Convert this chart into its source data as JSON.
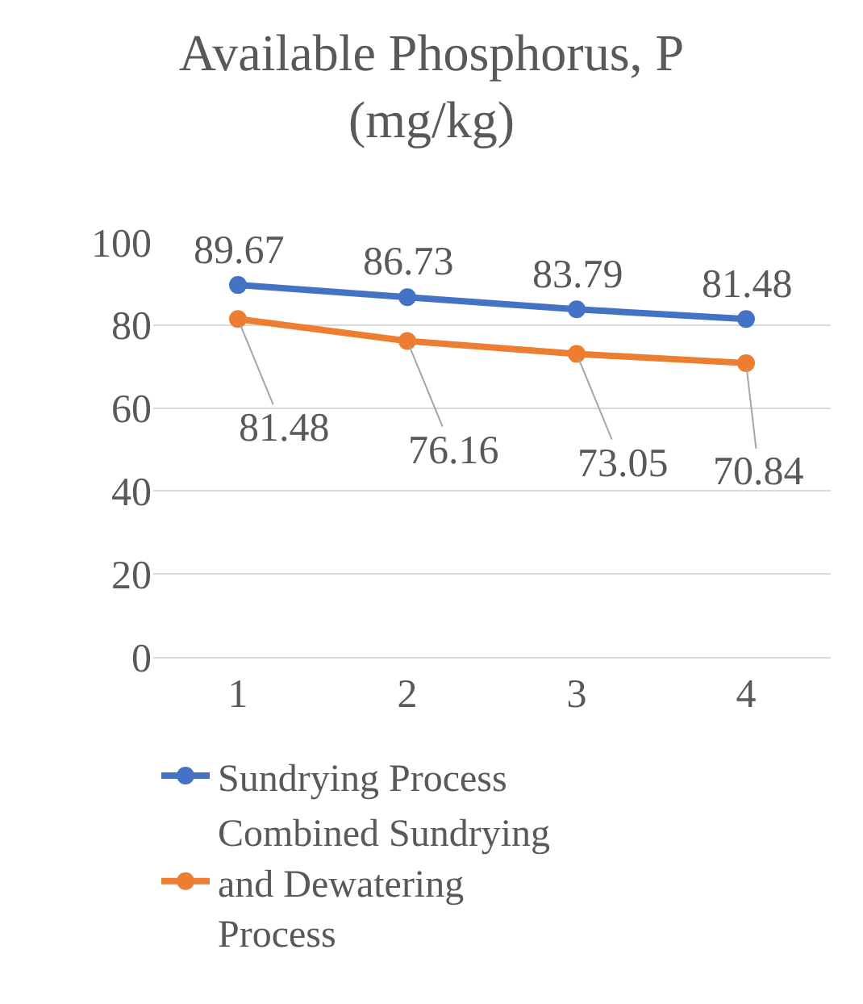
{
  "chart_data": {
    "type": "line",
    "title": "Available Phosphorus, P (mg/kg)",
    "categories": [
      "1",
      "2",
      "3",
      "4"
    ],
    "series": [
      {
        "name": "Sundrying Process",
        "color": "#4472c4",
        "values": [
          89.67,
          86.73,
          83.79,
          81.48
        ]
      },
      {
        "name": "Combined Sundrying and Dewatering Process",
        "color": "#ed7d31",
        "values": [
          81.48,
          76.16,
          73.05,
          70.84
        ]
      }
    ],
    "ylim": [
      0,
      100
    ],
    "yticks": [
      0,
      20,
      40,
      60,
      80,
      100
    ],
    "grid": "y",
    "legend": "bottom",
    "marker": "circle",
    "line_style": "solid",
    "data_labels": true
  }
}
